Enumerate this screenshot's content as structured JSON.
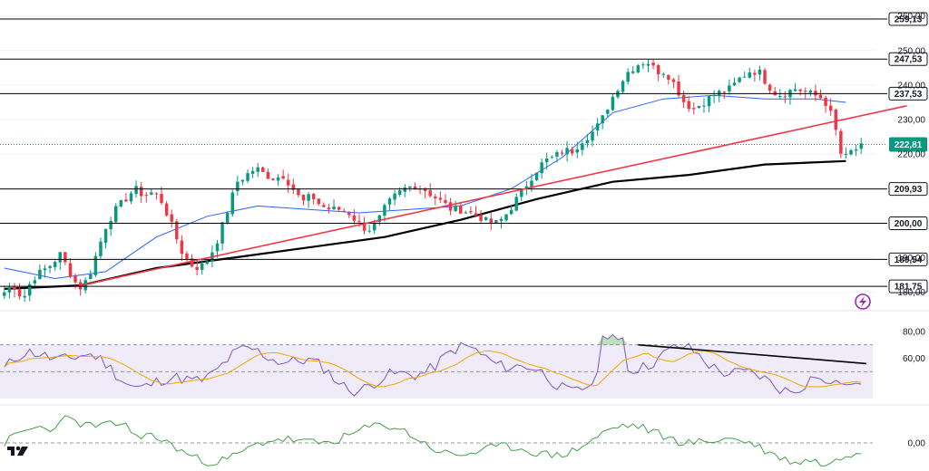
{
  "chart_data": [
    {
      "type": "candlestick",
      "panel": "price",
      "y_range": [
        176,
        262
      ],
      "y_ticks": [
        "260,00",
        "250,00",
        "240,00",
        "230,00",
        "220,00",
        "190,00",
        "180,00"
      ],
      "levels": [
        {
          "value": 259.13,
          "label": "259,13",
          "color": "#000000"
        },
        {
          "value": 247.53,
          "label": "247,53",
          "color": "#000000"
        },
        {
          "value": 237.53,
          "label": "237,53",
          "color": "#000000"
        },
        {
          "value": 209.93,
          "label": "209,93",
          "color": "#000000"
        },
        {
          "value": 200.0,
          "label": "200,00",
          "color": "#000000"
        },
        {
          "value": 189.54,
          "label": "189,54",
          "color": "#000000"
        },
        {
          "value": 181.75,
          "label": "181,75",
          "color": "#000000"
        }
      ],
      "current_price": {
        "value": 222.81,
        "label": "222,81",
        "color": "#089981"
      },
      "close_path": [
        180,
        182,
        178,
        184,
        186,
        188,
        191,
        186,
        181,
        184,
        192,
        200,
        204,
        207,
        210,
        208,
        209,
        206,
        199,
        192,
        188,
        187,
        190,
        196,
        204,
        212,
        214,
        216,
        214,
        213,
        214,
        210,
        206,
        208,
        205,
        204,
        204,
        203,
        200,
        198,
        200,
        205,
        208,
        210,
        211,
        210,
        208,
        206,
        204,
        204,
        203,
        202,
        200,
        200,
        203,
        207,
        211,
        215,
        218,
        219,
        221,
        221,
        224,
        226,
        229,
        235,
        240,
        244,
        246,
        247,
        244,
        244,
        240,
        235,
        233,
        235,
        237,
        238,
        239,
        242,
        244,
        244,
        240,
        237,
        238,
        239,
        238,
        237,
        236,
        230,
        218,
        221,
        222
      ],
      "ma_fast": {
        "points": [
          [
            0,
            187
          ],
          [
            10,
            184
          ],
          [
            20,
            186
          ],
          [
            30,
            196
          ],
          [
            40,
            202
          ],
          [
            50,
            205
          ],
          [
            60,
            204
          ],
          [
            70,
            203
          ],
          [
            80,
            204
          ],
          [
            90,
            205
          ],
          [
            100,
            210
          ],
          [
            110,
            219
          ],
          [
            120,
            232
          ],
          [
            130,
            236
          ],
          [
            140,
            237
          ],
          [
            150,
            236
          ],
          [
            160,
            236
          ],
          [
            166,
            235
          ]
        ],
        "color": "#2962ff"
      },
      "ma_slow": {
        "points": [
          [
            0,
            181
          ],
          [
            15,
            182
          ],
          [
            30,
            187
          ],
          [
            45,
            190
          ],
          [
            60,
            193
          ],
          [
            75,
            196
          ],
          [
            90,
            201
          ],
          [
            105,
            207
          ],
          [
            120,
            212
          ],
          [
            135,
            214
          ],
          [
            150,
            217
          ],
          [
            166,
            218
          ]
        ],
        "color": "#000000"
      },
      "trendline": {
        "from": [
          15,
          182
        ],
        "to": [
          178,
          234
        ],
        "color": "#f23645"
      },
      "colors": {
        "up": "#089981",
        "down": "#f23645"
      }
    },
    {
      "type": "line",
      "panel": "rsi",
      "y_ticks": [
        "80,00",
        "60,00"
      ],
      "band": [
        30,
        70
      ],
      "band_color": "#7e57c2",
      "rsi_color": "#7e57c2",
      "signal_color": "#f7a600",
      "trendline": {
        "from": [
          125,
          70
        ],
        "to": [
          170,
          56
        ],
        "color": "#000000"
      }
    },
    {
      "type": "line",
      "panel": "oscillator",
      "y_ticks": [
        "0,00"
      ],
      "line_color": "#43a047"
    }
  ]
}
